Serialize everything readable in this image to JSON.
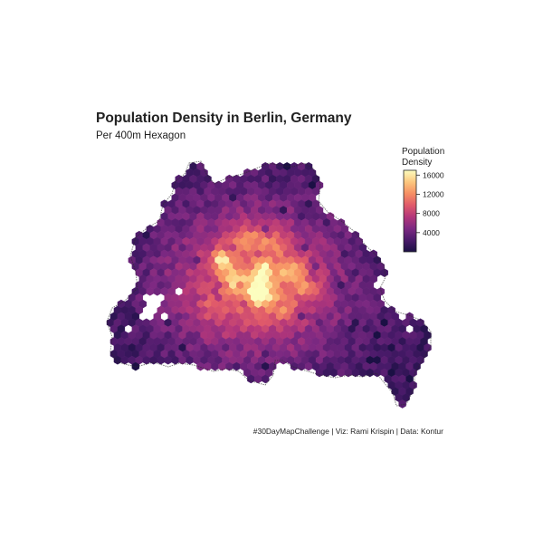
{
  "title": "Population Density in Berlin, Germany",
  "subtitle": "Per 400m Hexagon",
  "legend": {
    "title_line1": "Population",
    "title_line2": "Density",
    "ticks": [
      {
        "value": 4000,
        "label": "4000"
      },
      {
        "value": 8000,
        "label": "8000"
      },
      {
        "value": 12000,
        "label": "12000"
      },
      {
        "value": 16000,
        "label": "16000"
      }
    ],
    "min": 0,
    "max": 17000,
    "colors": [
      "#1b1044",
      "#4a1a6a",
      "#7d2982",
      "#b3367a",
      "#e05a6a",
      "#f68f63",
      "#fcc77e",
      "#fcfdbf"
    ]
  },
  "caption": "#30DayMapChallenge | Viz: Rami Krispin | Data: Kontur",
  "colors": {
    "outline": "#2a2a2a",
    "background": "#ffffff"
  }
}
